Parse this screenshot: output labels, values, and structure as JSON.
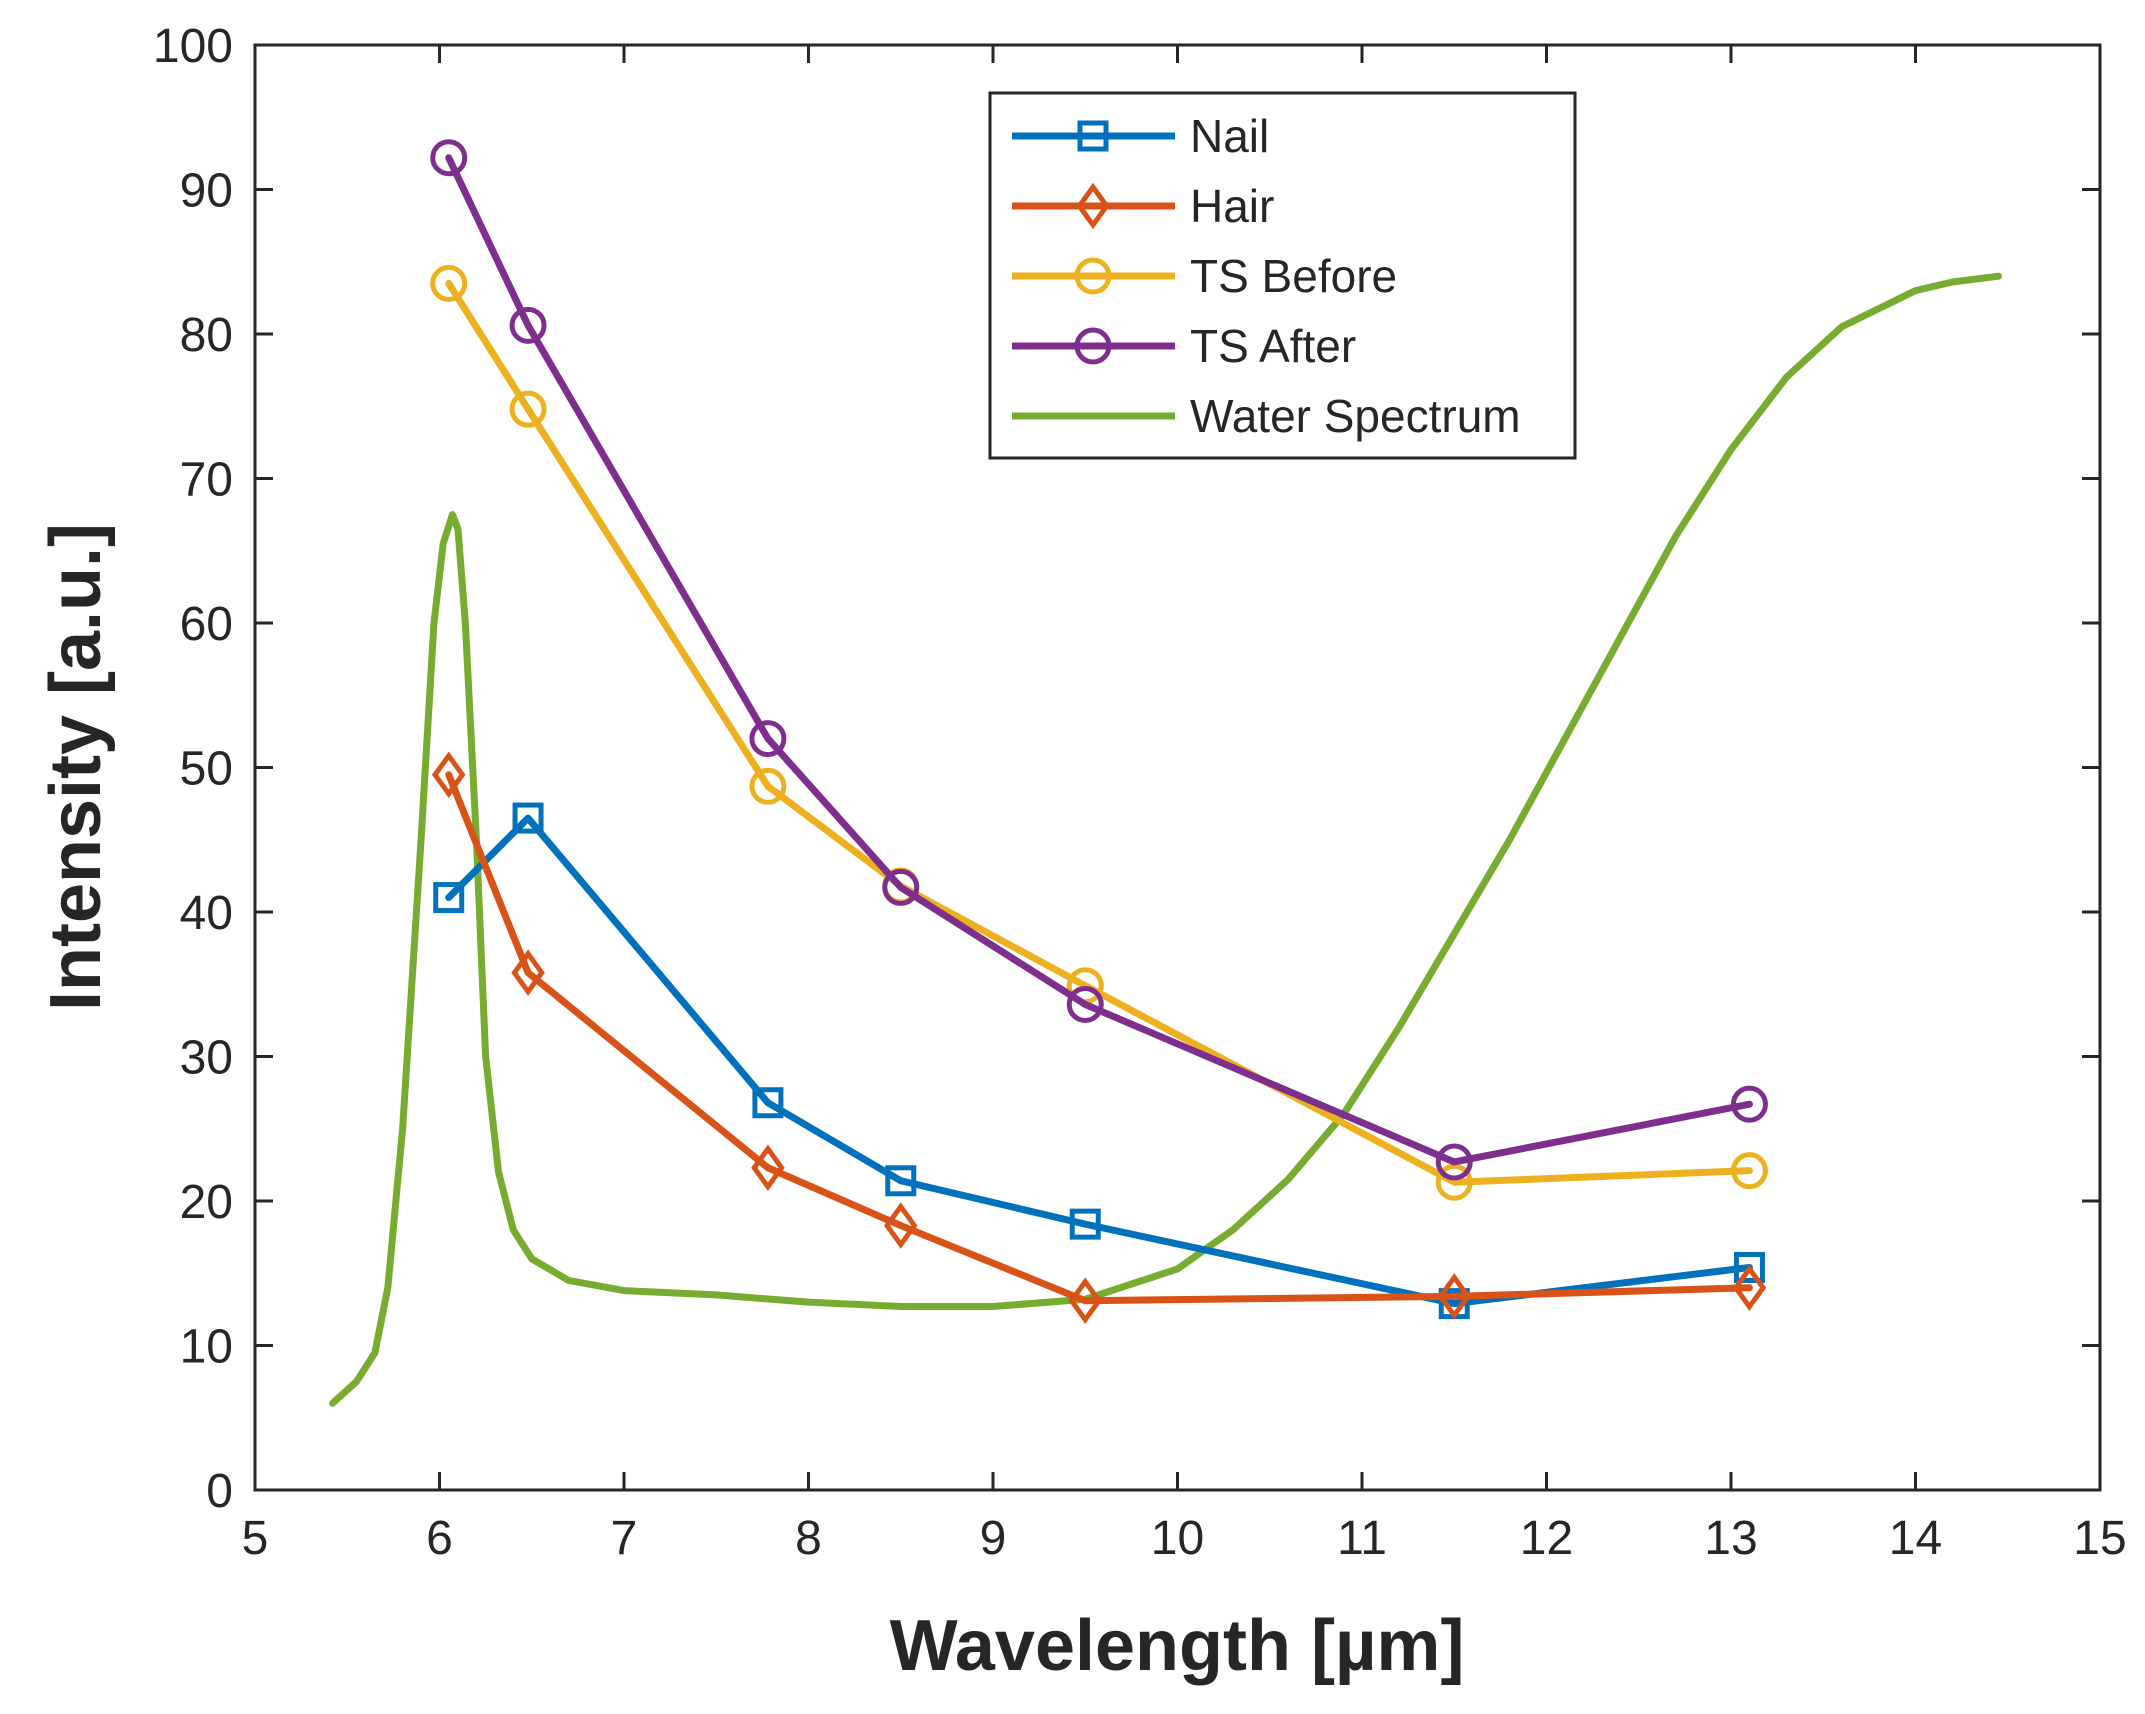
{
  "chart_data": {
    "type": "line",
    "xlabel": "Wavelength  [µm]",
    "ylabel": "Intensity [a.u.]",
    "xlim": [
      5,
      15
    ],
    "ylim": [
      0,
      100
    ],
    "xticks": [
      5,
      6,
      7,
      8,
      9,
      10,
      11,
      12,
      13,
      14,
      15
    ],
    "yticks": [
      0,
      10,
      20,
      30,
      40,
      50,
      60,
      70,
      80,
      90,
      100
    ],
    "xtick_labels": [
      "5",
      "6",
      "7",
      "8",
      "9",
      "10",
      "11",
      "12",
      "13",
      "14",
      "15"
    ],
    "ytick_labels": [
      "0",
      "10",
      "20",
      "30",
      "40",
      "50",
      "60",
      "70",
      "80",
      "90",
      "100"
    ],
    "legend_position": "top-center",
    "series": [
      {
        "name": "Nail",
        "color": "#0072BD",
        "marker": "square",
        "x": [
          6.05,
          6.48,
          7.78,
          8.5,
          9.5,
          11.5,
          13.1
        ],
        "y": [
          41,
          46.5,
          26.8,
          21.4,
          18.4,
          12.9,
          15.4
        ]
      },
      {
        "name": "Hair",
        "color": "#D95319",
        "marker": "diamond",
        "x": [
          6.05,
          6.48,
          7.78,
          8.5,
          9.5,
          11.5,
          13.1
        ],
        "y": [
          49.5,
          35.8,
          22.3,
          18.3,
          13.1,
          13.4,
          14.0
        ]
      },
      {
        "name": "TS Before",
        "color": "#EDB120",
        "marker": "circle",
        "x": [
          6.05,
          6.48,
          7.78,
          8.5,
          9.5,
          11.5,
          13.1
        ],
        "y": [
          83.5,
          74.8,
          48.7,
          41.8,
          34.9,
          21.3,
          22.1
        ]
      },
      {
        "name": "TS After",
        "color": "#7E2F8E",
        "marker": "circle",
        "x": [
          6.05,
          6.48,
          7.78,
          8.5,
          9.5,
          11.5,
          13.1
        ],
        "y": [
          92.2,
          80.6,
          52.0,
          41.7,
          33.6,
          22.7,
          26.7
        ]
      },
      {
        "name": "Water Spectrum",
        "color": "#77AC30",
        "marker": "none",
        "x": [
          5.42,
          5.55,
          5.65,
          5.72,
          5.8,
          5.9,
          5.97,
          6.02,
          6.07,
          6.1,
          6.14,
          6.2,
          6.25,
          6.32,
          6.4,
          6.5,
          6.7,
          7.0,
          7.5,
          8.0,
          8.5,
          9.0,
          9.5,
          10.0,
          10.3,
          10.6,
          10.9,
          11.2,
          11.5,
          11.8,
          12.1,
          12.4,
          12.7,
          13.0,
          13.3,
          13.6,
          14.0,
          14.2,
          14.45
        ],
        "y": [
          6,
          7.5,
          9.5,
          14,
          25,
          45,
          60,
          65.5,
          67.5,
          66.5,
          60,
          45,
          30,
          22,
          18,
          16,
          14.5,
          13.8,
          13.5,
          13,
          12.7,
          12.7,
          13.2,
          15.3,
          18,
          21.5,
          26,
          32,
          38.5,
          45,
          52,
          59,
          66,
          72,
          77,
          80.5,
          83,
          83.6,
          84
        ]
      }
    ]
  }
}
